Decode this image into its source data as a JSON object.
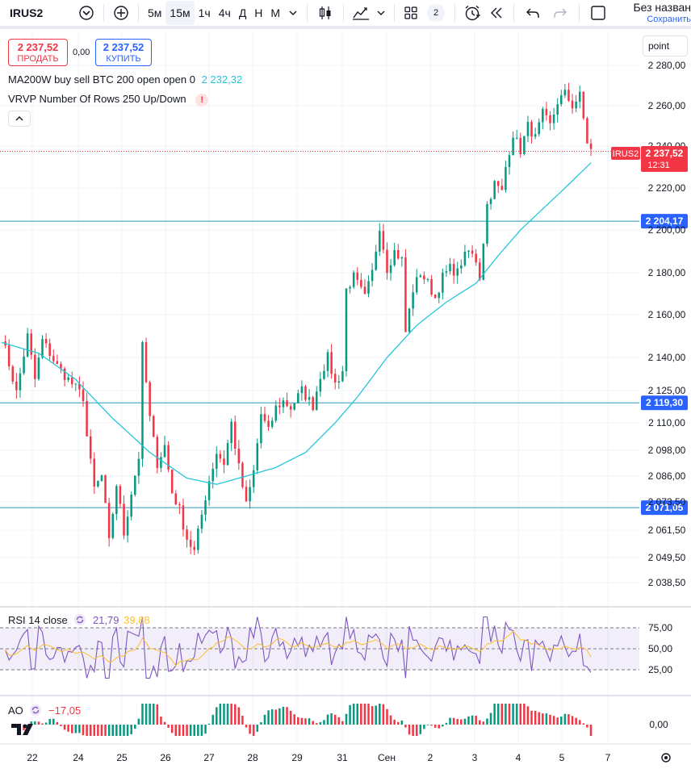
{
  "toolbar": {
    "symbol": "IRUS2",
    "intervals": [
      "5м",
      "15м",
      "1ч",
      "4ч",
      "Д",
      "Н",
      "М"
    ],
    "active_interval": "15м",
    "layouts_badge": "2",
    "save_title": "Без назван",
    "save_subtitle": "Сохранить"
  },
  "trade": {
    "sell_price": "2 237,52",
    "sell_label": "ПРОДАТЬ",
    "spread": "0,00",
    "buy_price": "2 237,52",
    "buy_label": "КУПИТЬ"
  },
  "legend": {
    "ma_title": "MA200W buy sell BTC 200 open open 0",
    "ma_value": "2 232,32",
    "vrvp_title": "VRVP Number Of Rows 250 Up/Down",
    "rsi_title": "RSI 14 close",
    "rsi_value1": "21,79",
    "rsi_value2": "39,88",
    "ao_title": "AO",
    "ao_value": "−17,05",
    "point_label": "point"
  },
  "colors": {
    "up": "#089981",
    "down": "#f23645",
    "ma": "#26c6da",
    "hline": "#2b9bb5",
    "rsi": "#7e57c2",
    "rsi_ma": "#fbc02d",
    "label_blue": "#2962ff"
  },
  "chart_data": {
    "type": "candlestick",
    "symbol": "IRUS2",
    "interval": "15м",
    "x_ticks": [
      "22",
      "24",
      "25",
      "26",
      "27",
      "28",
      "29",
      "31",
      "Сен",
      "2",
      "3",
      "4",
      "5",
      "7"
    ],
    "y_ticks": [
      "2 280,00",
      "2 260,00",
      "2 240,00",
      "2 220,00",
      "2 200,00",
      "2 180,00",
      "2 160,00",
      "2 140,00",
      "2 125,00",
      "2 110,00",
      "2 098,00",
      "2 086,00",
      "2 073,50",
      "2 061,50",
      "2 049,50",
      "2 038,50"
    ],
    "last_price": {
      "symbol": "IRUS2",
      "value": "2 237,52",
      "countdown": "12:31"
    },
    "horizontal_lines": [
      {
        "value": 2204.17,
        "label": "2 204,17"
      },
      {
        "value": 2119.3,
        "label": "2 119,30"
      },
      {
        "value": 2071.05,
        "label": "2 071,05"
      }
    ],
    "price_path": [
      [
        0,
        2150
      ],
      [
        4,
        2124
      ],
      [
        7,
        2150
      ],
      [
        9,
        2130
      ],
      [
        11,
        2148
      ],
      [
        15,
        2136
      ],
      [
        19,
        2128
      ],
      [
        22,
        2122
      ],
      [
        23,
        2104
      ],
      [
        25,
        2080
      ],
      [
        27,
        2086
      ],
      [
        29,
        2056
      ],
      [
        31,
        2082
      ],
      [
        33,
        2060
      ],
      [
        35,
        2078
      ],
      [
        37,
        2095
      ],
      [
        38,
        2145
      ],
      [
        40,
        2112
      ],
      [
        42,
        2092
      ],
      [
        44,
        2100
      ],
      [
        46,
        2078
      ],
      [
        48,
        2070
      ],
      [
        50,
        2058
      ],
      [
        52,
        2052
      ],
      [
        54,
        2068
      ],
      [
        56,
        2084
      ],
      [
        58,
        2097
      ],
      [
        60,
        2092
      ],
      [
        62,
        2110
      ],
      [
        64,
        2090
      ],
      [
        66,
        2072
      ],
      [
        68,
        2088
      ],
      [
        70,
        2114
      ],
      [
        72,
        2106
      ],
      [
        74,
        2117
      ],
      [
        76,
        2120
      ],
      [
        78,
        2117
      ],
      [
        81,
        2125
      ],
      [
        84,
        2118
      ],
      [
        86,
        2132
      ],
      [
        88,
        2140
      ],
      [
        90,
        2128
      ],
      [
        92,
        2134
      ],
      [
        93,
        2172
      ],
      [
        95,
        2178
      ],
      [
        98,
        2168
      ],
      [
        100,
        2180
      ],
      [
        102,
        2202
      ],
      [
        104,
        2182
      ],
      [
        106,
        2190
      ],
      [
        108,
        2186
      ],
      [
        109,
        2152
      ],
      [
        111,
        2172
      ],
      [
        113,
        2180
      ],
      [
        115,
        2175
      ],
      [
        117,
        2168
      ],
      [
        119,
        2178
      ],
      [
        121,
        2182
      ],
      [
        123,
        2180
      ],
      [
        124,
        2185
      ],
      [
        126,
        2190
      ],
      [
        128,
        2186
      ],
      [
        129,
        2178
      ],
      [
        131,
        2212
      ],
      [
        133,
        2222
      ],
      [
        135,
        2218
      ],
      [
        136,
        2230
      ],
      [
        138,
        2246
      ],
      [
        140,
        2238
      ],
      [
        142,
        2250
      ],
      [
        144,
        2244
      ],
      [
        146,
        2256
      ],
      [
        148,
        2250
      ],
      [
        150,
        2262
      ],
      [
        152,
        2266
      ],
      [
        154,
        2260
      ],
      [
        156,
        2265
      ],
      [
        158,
        2242
      ],
      [
        159,
        2238
      ]
    ],
    "ma_path": [
      [
        0,
        2147
      ],
      [
        10,
        2142
      ],
      [
        20,
        2130
      ],
      [
        30,
        2112
      ],
      [
        40,
        2097
      ],
      [
        50,
        2085
      ],
      [
        58,
        2082
      ],
      [
        66,
        2086
      ],
      [
        74,
        2090
      ],
      [
        82,
        2097
      ],
      [
        90,
        2110
      ],
      [
        96,
        2122
      ],
      [
        104,
        2140
      ],
      [
        112,
        2155
      ],
      [
        120,
        2166
      ],
      [
        128,
        2175
      ],
      [
        134,
        2188
      ],
      [
        140,
        2200
      ],
      [
        146,
        2210
      ],
      [
        152,
        2220
      ],
      [
        159,
        2232
      ]
    ],
    "rsi": {
      "levels": [
        "75,00",
        "50,00",
        "25,00"
      ],
      "value": 21.79,
      "signal": 39.88
    },
    "ao": {
      "zero_label": "0,00",
      "value": -17.05
    }
  }
}
